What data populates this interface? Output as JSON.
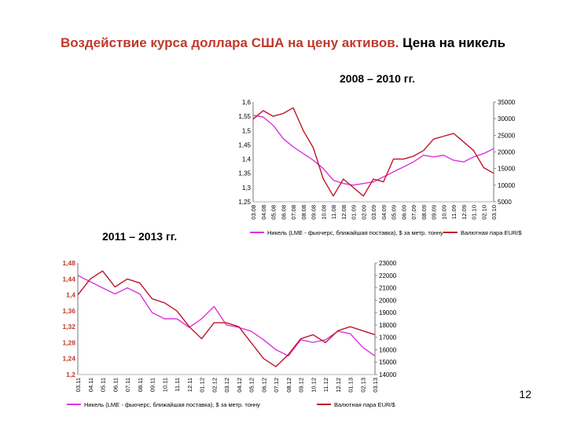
{
  "slide": {
    "title_accent": "Воздействие курса доллара США на цену активов.",
    "title_plain": " Цена на никель",
    "page_number": "12"
  },
  "colors": {
    "nickel": "#dd33dd",
    "eurusd": "#c0142b"
  },
  "chart_data": [
    {
      "type": "line",
      "subtitle": "2008 – 2010 гг.",
      "x": [
        "03.08",
        "04.08",
        "05.08",
        "06.08",
        "07.08",
        "08.08",
        "09.08",
        "10.08",
        "11.08",
        "12.08",
        "01.09",
        "02.09",
        "03.09",
        "04.09",
        "05.09",
        "06.09",
        "07.09",
        "08.09",
        "09.09",
        "10.09",
        "11.09",
        "12.09",
        "01.10",
        "02.10",
        "03.10"
      ],
      "y_left": {
        "ylim": [
          1.25,
          1.6
        ],
        "ticks": [
          "1,6",
          "1,55",
          "1,5",
          "1,45",
          "1,4",
          "1,35",
          "1,3",
          "1,25"
        ]
      },
      "y_right": {
        "ylim": [
          5000,
          35000
        ],
        "ticks": [
          "35000",
          "30000",
          "25000",
          "20000",
          "15000",
          "10000",
          "5000"
        ]
      },
      "series": [
        {
          "name": "Никель (LME - фьючерс, ближайшая поставка), $ за метр. тонну",
          "axis": "right",
          "values": [
            31000,
            30500,
            28000,
            24000,
            21500,
            19500,
            17500,
            15000,
            11500,
            10500,
            10000,
            10500,
            11000,
            12500,
            14000,
            15500,
            17000,
            19000,
            18500,
            19000,
            17500,
            17000,
            18500,
            19500,
            21000
          ]
        },
        {
          "name": "Валютная пара EUR/$",
          "axis": "left",
          "values": [
            1.54,
            1.57,
            1.55,
            1.56,
            1.58,
            1.5,
            1.44,
            1.33,
            1.27,
            1.33,
            1.3,
            1.27,
            1.33,
            1.32,
            1.4,
            1.4,
            1.41,
            1.43,
            1.47,
            1.48,
            1.49,
            1.46,
            1.43,
            1.37,
            1.35
          ]
        }
      ],
      "legend": [
        "Никель (LME - фьючерс, ближайшая поставка), $ за метр. тонну",
        "Валютная пара EUR/$"
      ]
    },
    {
      "type": "line",
      "subtitle": "2011 – 2013 гг.",
      "x": [
        "03.11",
        "04.11",
        "05.11",
        "06.11",
        "07.11",
        "08.11",
        "09.11",
        "10.11",
        "11.11",
        "12.11",
        "01.12",
        "02.12",
        "03.12",
        "04.12",
        "05.12",
        "06.12",
        "07.12",
        "08.12",
        "09.12",
        "10.12",
        "11.12",
        "12.12",
        "01.13",
        "02.13",
        "03.13"
      ],
      "y_left": {
        "ylim": [
          1.2,
          1.48
        ],
        "ticks": [
          "1,48",
          "1,44",
          "1,4",
          "1,36",
          "1,32",
          "1,28",
          "1,24",
          "1,2"
        ]
      },
      "y_right": {
        "ylim": [
          14000,
          23000
        ],
        "ticks": [
          "23000",
          "22000",
          "21000",
          "20000",
          "19000",
          "18000",
          "17000",
          "16000",
          "15000",
          "14000"
        ]
      },
      "series": [
        {
          "name": "Никель (LME - фьючерс, ближайшая поставка), $ за метр. тонну",
          "axis": "right",
          "values": [
            22000,
            21500,
            21000,
            20500,
            21000,
            20500,
            19000,
            18500,
            18500,
            17800,
            18500,
            19500,
            18000,
            17800,
            17500,
            16800,
            16000,
            15500,
            16800,
            16600,
            16800,
            17500,
            17300,
            16200,
            15500
          ]
        },
        {
          "name": "Валютная пара EUR/$",
          "axis": "left",
          "values": [
            1.4,
            1.44,
            1.46,
            1.42,
            1.44,
            1.43,
            1.39,
            1.38,
            1.36,
            1.32,
            1.29,
            1.33,
            1.33,
            1.32,
            1.28,
            1.24,
            1.22,
            1.25,
            1.29,
            1.3,
            1.28,
            1.31,
            1.32,
            1.31,
            1.3
          ]
        }
      ],
      "legend": [
        "Никель (LME - фьючерс, ближайшая поставка), $ за метр. тонну",
        "Валютная пара EUR/$"
      ]
    }
  ]
}
